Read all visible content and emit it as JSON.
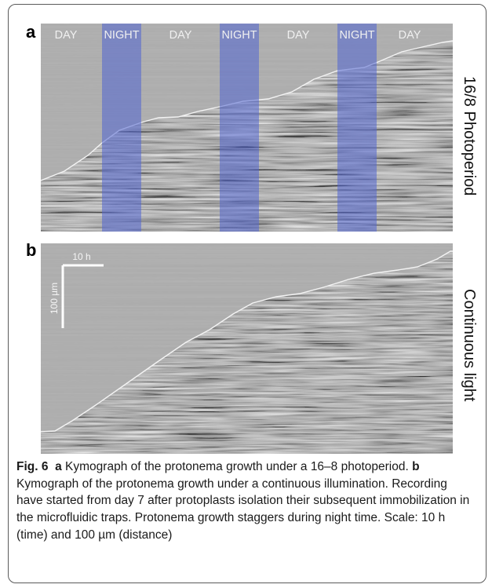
{
  "panel_a": {
    "letter": "a",
    "side_label": "16/8 Photoperiod",
    "periods": [
      "DAY",
      "NIGHT",
      "DAY",
      "NIGHT",
      "DAY",
      "NIGHT",
      "DAY"
    ]
  },
  "panel_b": {
    "letter": "b",
    "side_label": "Continuous light",
    "scale_time": "10 h",
    "scale_distance": "100 µm"
  },
  "caption": {
    "fig_label": "Fig. 6",
    "part_a_letter": "a",
    "part_a_text": "Kymograph of the protonema growth under a 16–8 photoperiod.",
    "part_b_letter": "b",
    "part_b_text": "Kymograph of the protonema growth under a continuous illumination. Recording have started from day 7 after protoplasts isolation their subsequent immobilization in the microfluidic traps. Protonema growth staggers during night time. Scale: 10 h (time) and 100 µm (distance)"
  },
  "colors": {
    "background": "#a9a9a9",
    "night_band": "#5064d2",
    "label_text": "#f0f0f0"
  }
}
